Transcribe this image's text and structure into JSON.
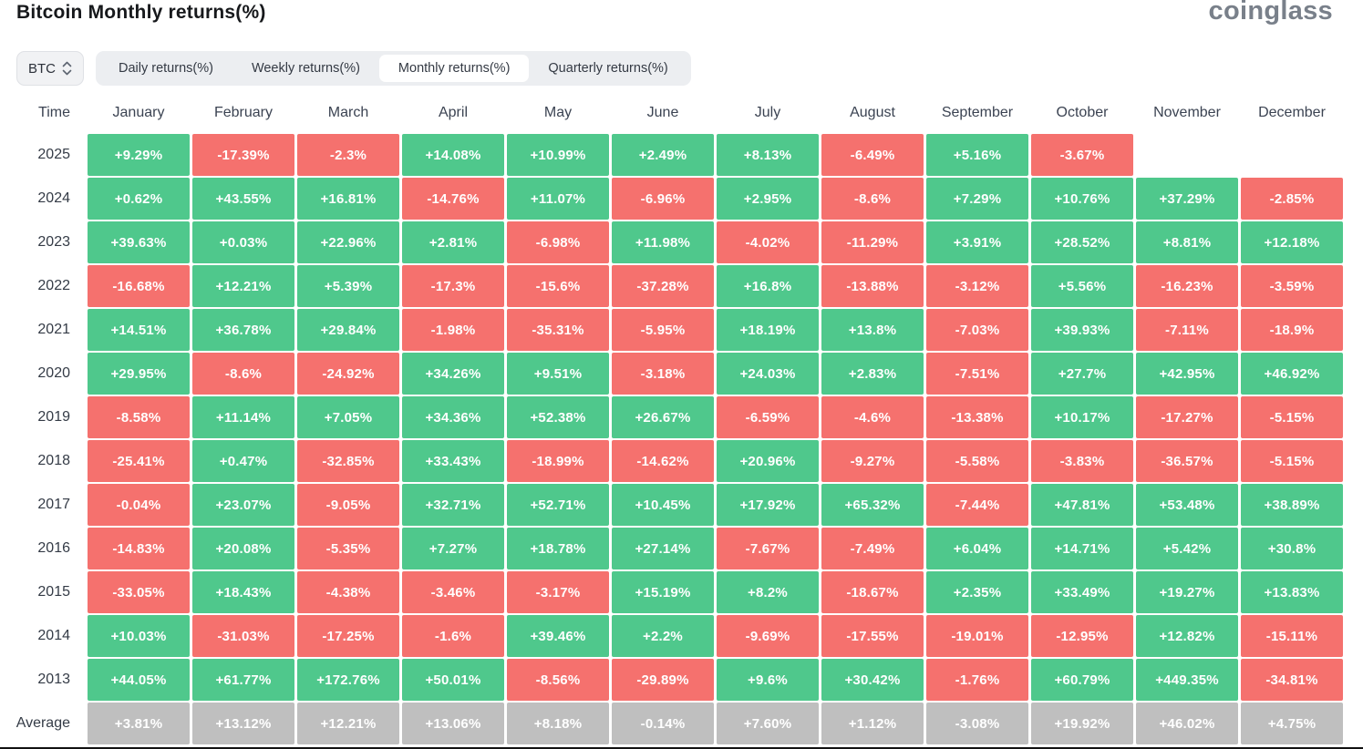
{
  "page": {
    "title": "Bitcoin Monthly returns(%)",
    "logo_text": "coinglass"
  },
  "controls": {
    "symbol_select": {
      "value": "BTC"
    },
    "tabs": [
      {
        "id": "daily",
        "label": "Daily returns(%)",
        "active": false
      },
      {
        "id": "weekly",
        "label": "Weekly returns(%)",
        "active": false
      },
      {
        "id": "monthly",
        "label": "Monthly returns(%)",
        "active": true
      },
      {
        "id": "quarterly",
        "label": "Quarterly returns(%)",
        "active": false
      }
    ]
  },
  "colors": {
    "positive": "#4fc88c",
    "negative": "#f5716e",
    "average": "#bfbfbf"
  },
  "chart_data": {
    "type": "table",
    "title": "Bitcoin Monthly returns(%)",
    "time_header": "Time",
    "columns": [
      "January",
      "February",
      "March",
      "April",
      "May",
      "June",
      "July",
      "August",
      "September",
      "October",
      "November",
      "December"
    ],
    "rows": [
      {
        "label": "2025",
        "is_average": false,
        "values": [
          "+9.29%",
          "-17.39%",
          "-2.3%",
          "+14.08%",
          "+10.99%",
          "+2.49%",
          "+8.13%",
          "-6.49%",
          "+5.16%",
          "-3.67%",
          null,
          null
        ]
      },
      {
        "label": "2024",
        "is_average": false,
        "values": [
          "+0.62%",
          "+43.55%",
          "+16.81%",
          "-14.76%",
          "+11.07%",
          "-6.96%",
          "+2.95%",
          "-8.6%",
          "+7.29%",
          "+10.76%",
          "+37.29%",
          "-2.85%"
        ]
      },
      {
        "label": "2023",
        "is_average": false,
        "values": [
          "+39.63%",
          "+0.03%",
          "+22.96%",
          "+2.81%",
          "-6.98%",
          "+11.98%",
          "-4.02%",
          "-11.29%",
          "+3.91%",
          "+28.52%",
          "+8.81%",
          "+12.18%"
        ]
      },
      {
        "label": "2022",
        "is_average": false,
        "values": [
          "-16.68%",
          "+12.21%",
          "+5.39%",
          "-17.3%",
          "-15.6%",
          "-37.28%",
          "+16.8%",
          "-13.88%",
          "-3.12%",
          "+5.56%",
          "-16.23%",
          "-3.59%"
        ]
      },
      {
        "label": "2021",
        "is_average": false,
        "values": [
          "+14.51%",
          "+36.78%",
          "+29.84%",
          "-1.98%",
          "-35.31%",
          "-5.95%",
          "+18.19%",
          "+13.8%",
          "-7.03%",
          "+39.93%",
          "-7.11%",
          "-18.9%"
        ]
      },
      {
        "label": "2020",
        "is_average": false,
        "values": [
          "+29.95%",
          "-8.6%",
          "-24.92%",
          "+34.26%",
          "+9.51%",
          "-3.18%",
          "+24.03%",
          "+2.83%",
          "-7.51%",
          "+27.7%",
          "+42.95%",
          "+46.92%"
        ]
      },
      {
        "label": "2019",
        "is_average": false,
        "values": [
          "-8.58%",
          "+11.14%",
          "+7.05%",
          "+34.36%",
          "+52.38%",
          "+26.67%",
          "-6.59%",
          "-4.6%",
          "-13.38%",
          "+10.17%",
          "-17.27%",
          "-5.15%"
        ]
      },
      {
        "label": "2018",
        "is_average": false,
        "values": [
          "-25.41%",
          "+0.47%",
          "-32.85%",
          "+33.43%",
          "-18.99%",
          "-14.62%",
          "+20.96%",
          "-9.27%",
          "-5.58%",
          "-3.83%",
          "-36.57%",
          "-5.15%"
        ]
      },
      {
        "label": "2017",
        "is_average": false,
        "values": [
          "-0.04%",
          "+23.07%",
          "-9.05%",
          "+32.71%",
          "+52.71%",
          "+10.45%",
          "+17.92%",
          "+65.32%",
          "-7.44%",
          "+47.81%",
          "+53.48%",
          "+38.89%"
        ]
      },
      {
        "label": "2016",
        "is_average": false,
        "values": [
          "-14.83%",
          "+20.08%",
          "-5.35%",
          "+7.27%",
          "+18.78%",
          "+27.14%",
          "-7.67%",
          "-7.49%",
          "+6.04%",
          "+14.71%",
          "+5.42%",
          "+30.8%"
        ]
      },
      {
        "label": "2015",
        "is_average": false,
        "values": [
          "-33.05%",
          "+18.43%",
          "-4.38%",
          "-3.46%",
          "-3.17%",
          "+15.19%",
          "+8.2%",
          "-18.67%",
          "+2.35%",
          "+33.49%",
          "+19.27%",
          "+13.83%"
        ]
      },
      {
        "label": "2014",
        "is_average": false,
        "values": [
          "+10.03%",
          "-31.03%",
          "-17.25%",
          "-1.6%",
          "+39.46%",
          "+2.2%",
          "-9.69%",
          "-17.55%",
          "-19.01%",
          "-12.95%",
          "+12.82%",
          "-15.11%"
        ]
      },
      {
        "label": "2013",
        "is_average": false,
        "values": [
          "+44.05%",
          "+61.77%",
          "+172.76%",
          "+50.01%",
          "-8.56%",
          "-29.89%",
          "+9.6%",
          "+30.42%",
          "-1.76%",
          "+60.79%",
          "+449.35%",
          "-34.81%"
        ]
      },
      {
        "label": "Average",
        "is_average": true,
        "values": [
          "+3.81%",
          "+13.12%",
          "+12.21%",
          "+13.06%",
          "+8.18%",
          "-0.14%",
          "+7.60%",
          "+1.12%",
          "-3.08%",
          "+19.92%",
          "+46.02%",
          "+4.75%"
        ]
      }
    ]
  }
}
